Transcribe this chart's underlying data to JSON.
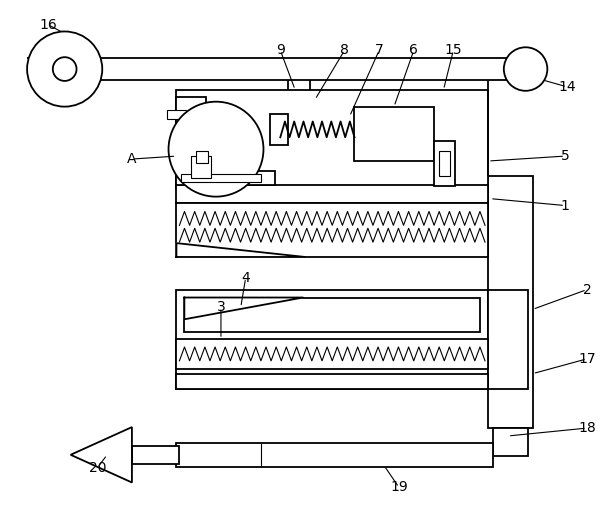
{
  "background_color": "#ffffff",
  "line_color": "#000000",
  "lw_thin": 0.8,
  "lw_main": 1.3,
  "lw_thick": 1.8,
  "fig_width": 6.14,
  "fig_height": 5.09
}
